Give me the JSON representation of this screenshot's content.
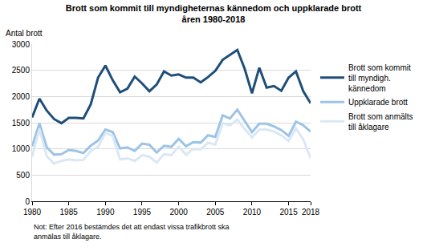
{
  "chart_data": {
    "type": "line",
    "title": "Brott som kommit till myndigheternas kännedom och uppklarade brott åren 1980-2018",
    "ylabel": "Antal brott",
    "note": "Not: Efter 2016 bestämdes det att endast vissa trafikbrott ska anmälas till åklagare.",
    "x": [
      1980,
      1981,
      1982,
      1983,
      1984,
      1985,
      1986,
      1987,
      1988,
      1989,
      1990,
      1991,
      1992,
      1993,
      1994,
      1995,
      1996,
      1997,
      1998,
      1999,
      2000,
      2001,
      2002,
      2003,
      2004,
      2005,
      2006,
      2007,
      2008,
      2009,
      2010,
      2011,
      2012,
      2013,
      2014,
      2015,
      2016,
      2017,
      2018
    ],
    "series": [
      {
        "name": "Brott som kommit till myndigh. kännedom",
        "color": "#1f4e79",
        "values": [
          1600,
          1960,
          1730,
          1570,
          1490,
          1590,
          1590,
          1580,
          1850,
          2360,
          2590,
          2310,
          2080,
          2150,
          2380,
          2250,
          2100,
          2230,
          2480,
          2400,
          2420,
          2360,
          2360,
          2270,
          2370,
          2490,
          2700,
          2800,
          2890,
          2530,
          2060,
          2550,
          2170,
          2200,
          2110,
          2360,
          2480,
          2100,
          1870
        ]
      },
      {
        "name": "Uppklarade brott",
        "color": "#9dc3e6",
        "values": [
          1050,
          1490,
          1030,
          890,
          900,
          980,
          960,
          920,
          1060,
          1160,
          1370,
          1320,
          1010,
          1030,
          960,
          1100,
          1080,
          930,
          1060,
          1040,
          1190,
          1050,
          1130,
          1120,
          1260,
          1230,
          1640,
          1580,
          1750,
          1530,
          1320,
          1480,
          1480,
          1430,
          1360,
          1250,
          1520,
          1450,
          1330
        ]
      },
      {
        "name": "Brott som anmälts till åklagare",
        "color": "#dae8f5",
        "values": [
          850,
          1380,
          860,
          720,
          770,
          800,
          780,
          790,
          960,
          1040,
          1300,
          1250,
          800,
          820,
          770,
          880,
          850,
          740,
          900,
          880,
          1040,
          890,
          1000,
          990,
          1120,
          1080,
          1490,
          1450,
          1560,
          1380,
          1220,
          1370,
          1370,
          1330,
          1260,
          1150,
          1390,
          1180,
          820
        ]
      }
    ],
    "xlim": [
      1980,
      2018
    ],
    "xticks": [
      1980,
      1985,
      1990,
      1995,
      2000,
      2005,
      2010,
      2015,
      2018
    ],
    "ylim": [
      0,
      3000
    ],
    "yticks": [
      0,
      500,
      1000,
      1500,
      2000,
      2500,
      3000
    ],
    "grid": true,
    "legend": "right"
  }
}
